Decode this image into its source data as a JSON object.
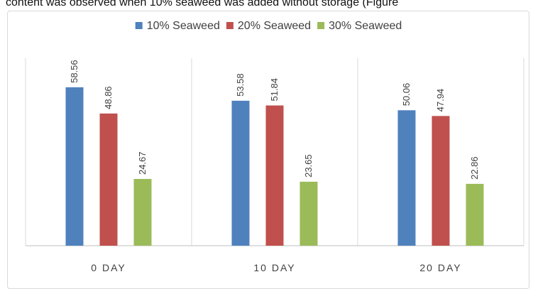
{
  "page_text": {
    "caption_fragment": "content was observed when 10% seaweed was added without storage (Figure"
  },
  "chart_data": {
    "type": "bar",
    "title": "",
    "xlabel": "",
    "ylabel": "",
    "categories": [
      "0 DAY",
      "10 DAY",
      "20 DAY"
    ],
    "series": [
      {
        "name": "10% Seaweed",
        "color": "#4f81bd",
        "values": [
          58.56,
          53.58,
          50.06
        ]
      },
      {
        "name": "20% Seaweed",
        "color": "#c0504d",
        "values": [
          48.86,
          51.84,
          47.94
        ]
      },
      {
        "name": "30% Seaweed",
        "color": "#9bbb59",
        "values": [
          24.67,
          23.65,
          22.86
        ]
      }
    ],
    "ylim": [
      0,
      63
    ],
    "grid": false,
    "legend_position": "top-center",
    "data_labels": true,
    "label_orientation": "vertical"
  }
}
